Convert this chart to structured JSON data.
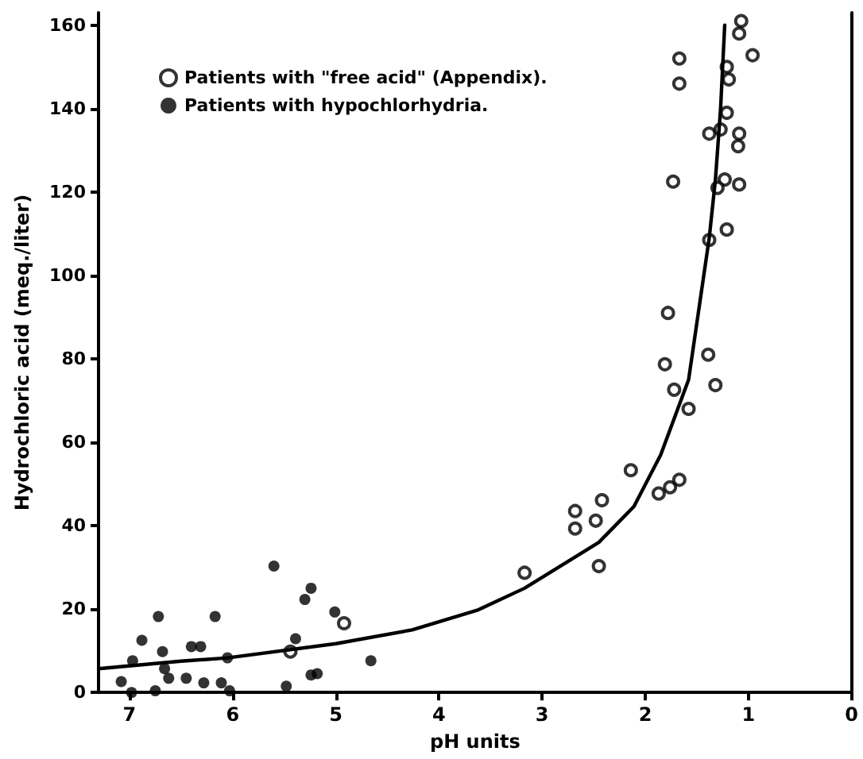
{
  "chart_data": {
    "type": "scatter",
    "xlabel": "pH units",
    "ylabel": "Hydrochloric acid (meq./liter)",
    "xlim": [
      7.3,
      0
    ],
    "xticks": [
      7,
      6,
      5,
      4,
      3,
      2,
      1,
      0
    ],
    "ylim": [
      0,
      163
    ],
    "yticks": [
      0,
      20,
      40,
      60,
      80,
      100,
      120,
      140,
      160
    ],
    "legend": "top left",
    "marker": "circle",
    "grid": false,
    "series": [
      {
        "name": "Patients with \"free acid\" (Appendix).",
        "color": "#000000",
        "x": [
          5.44,
          4.92,
          1.72,
          1.32,
          1.58,
          2.14,
          1.87,
          1.76,
          1.67,
          2.68,
          2.42,
          2.48,
          2.68,
          2.45,
          3.17,
          1.07,
          1.09,
          1.67,
          0.96,
          1.21,
          1.19,
          1.67,
          1.21,
          1.38,
          1.27,
          1.09,
          1.1,
          1.73,
          1.23,
          1.3,
          1.09,
          1.21,
          1.38,
          1.78,
          1.81,
          1.39
        ],
        "values": [
          9.8,
          16.6,
          72.6,
          73.7,
          68,
          53.3,
          47.7,
          49.2,
          51,
          43.5,
          46.1,
          41.2,
          39.3,
          30.3,
          28.7,
          161,
          158,
          152,
          152.8,
          150,
          147,
          146,
          139,
          134,
          135,
          134,
          131,
          122.5,
          123,
          121,
          121.8,
          111,
          108.5,
          91,
          78.7,
          81
        ]
      },
      {
        "name": "Patients with hypochlorhydria.",
        "color": "#000000",
        "x": [
          5.6,
          5.24,
          5.3,
          5.01,
          6.72,
          6.17,
          6.88,
          6.68,
          6.4,
          6.31,
          5.39,
          6.05,
          6.97,
          4.66,
          6.66,
          6.62,
          7.08,
          6.45,
          6.28,
          6.11,
          6.03,
          6.98,
          6.75,
          5.48,
          5.24,
          5.18
        ],
        "values": [
          30.3,
          25,
          22.3,
          19.3,
          18.2,
          18.2,
          12.5,
          9.8,
          11,
          11,
          12.9,
          8.3,
          7.6,
          7.6,
          5.7,
          3.4,
          2.6,
          3.4,
          2.3,
          2.3,
          0.4,
          0,
          0.4,
          1.5,
          4.2,
          4.5
        ]
      },
      {
        "type": "line",
        "color": "#000000",
        "marker": "none",
        "x": [
          7.3,
          6.5,
          6.05,
          5,
          4.26,
          3.63,
          3.17,
          2.45,
          2.11,
          1.85,
          1.7,
          1.58,
          1.38,
          1.32,
          1.27,
          1.23
        ],
        "values": [
          5.7,
          7.5,
          8.3,
          11.7,
          15,
          19.7,
          25,
          36,
          44.6,
          57,
          67,
          75,
          109,
          123,
          140,
          160
        ]
      }
    ]
  }
}
